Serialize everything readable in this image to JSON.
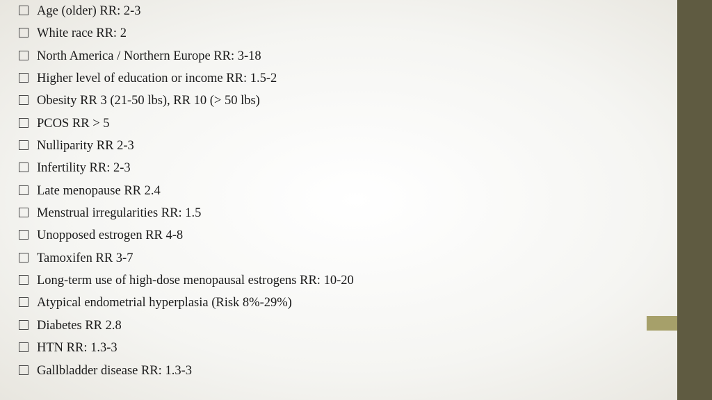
{
  "slide": {
    "background_gradient_inner": "#ffffff",
    "background_gradient_outer": "#e8e6df",
    "sidebar_color": "#5f5b41",
    "accent_color": "#a6a06a",
    "text_color": "#1a1a1a",
    "bullet_border_color": "#4a4a4a",
    "font_family": "Georgia, serif",
    "font_size_pt": 14,
    "items": [
      "Age (older)   RR: 2-3",
      "White race   RR: 2",
      "North America / Northern Europe   RR: 3-18",
      "Higher level of education or income    RR: 1.5-2",
      "Obesity RR 3 (21-50 lbs), RR 10 (> 50 lbs)",
      "PCOS    RR > 5",
      "Nulliparity    RR 2-3",
      "Infertility     RR: 2-3",
      "Late menopause RR 2.4",
      "Menstrual irregularities    RR: 1.5",
      "Unopposed estrogen RR 4-8",
      "Tamoxifen RR 3-7",
      "Long-term use of high-dose menopausal estrogens    RR: 10-20",
      "Atypical endometrial hyperplasia (Risk 8%-29%)",
      "Diabetes    RR 2.8",
      "HTN     RR: 1.3-3",
      "Gallbladder disease      RR: 1.3-3"
    ]
  }
}
